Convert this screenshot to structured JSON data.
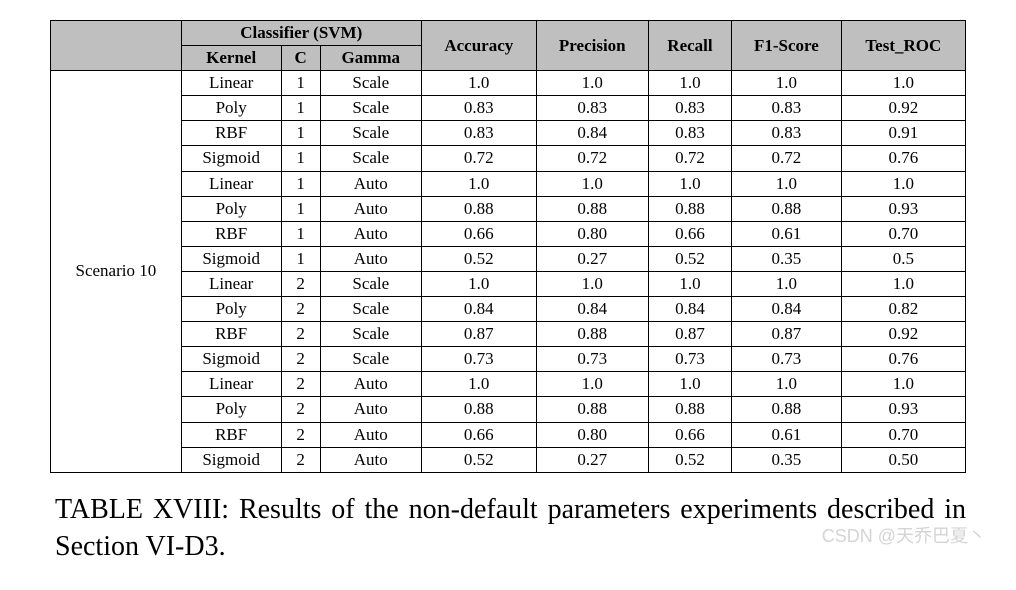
{
  "table": {
    "header_background": "#bfbfbf",
    "border_color": "#000000",
    "font_family": "Times New Roman",
    "row_label": "Scenario 10",
    "group_header": "Classifier (SVM)",
    "sub_headers": [
      "Kernel",
      "C",
      "Gamma"
    ],
    "metric_headers": [
      "Accuracy",
      "Precision",
      "Recall",
      "F1-Score",
      "Test_ROC"
    ],
    "rows": [
      {
        "kernel": "Linear",
        "c": "1",
        "gamma": "Scale",
        "accuracy": "1.0",
        "precision": "1.0",
        "recall": "1.0",
        "f1": "1.0",
        "roc": "1.0"
      },
      {
        "kernel": "Poly",
        "c": "1",
        "gamma": "Scale",
        "accuracy": "0.83",
        "precision": "0.83",
        "recall": "0.83",
        "f1": "0.83",
        "roc": "0.92"
      },
      {
        "kernel": "RBF",
        "c": "1",
        "gamma": "Scale",
        "accuracy": "0.83",
        "precision": "0.84",
        "recall": "0.83",
        "f1": "0.83",
        "roc": "0.91"
      },
      {
        "kernel": "Sigmoid",
        "c": "1",
        "gamma": "Scale",
        "accuracy": "0.72",
        "precision": "0.72",
        "recall": "0.72",
        "f1": "0.72",
        "roc": "0.76"
      },
      {
        "kernel": "Linear",
        "c": "1",
        "gamma": "Auto",
        "accuracy": "1.0",
        "precision": "1.0",
        "recall": "1.0",
        "f1": "1.0",
        "roc": "1.0"
      },
      {
        "kernel": "Poly",
        "c": "1",
        "gamma": "Auto",
        "accuracy": "0.88",
        "precision": "0.88",
        "recall": "0.88",
        "f1": "0.88",
        "roc": "0.93"
      },
      {
        "kernel": "RBF",
        "c": "1",
        "gamma": "Auto",
        "accuracy": "0.66",
        "precision": "0.80",
        "recall": "0.66",
        "f1": "0.61",
        "roc": "0.70"
      },
      {
        "kernel": "Sigmoid",
        "c": "1",
        "gamma": "Auto",
        "accuracy": "0.52",
        "precision": "0.27",
        "recall": "0.52",
        "f1": "0.35",
        "roc": "0.5"
      },
      {
        "kernel": "Linear",
        "c": "2",
        "gamma": "Scale",
        "accuracy": "1.0",
        "precision": "1.0",
        "recall": "1.0",
        "f1": "1.0",
        "roc": "1.0"
      },
      {
        "kernel": "Poly",
        "c": "2",
        "gamma": "Scale",
        "accuracy": "0.84",
        "precision": "0.84",
        "recall": "0.84",
        "f1": "0.84",
        "roc": "0.82"
      },
      {
        "kernel": "RBF",
        "c": "2",
        "gamma": "Scale",
        "accuracy": "0.87",
        "precision": "0.88",
        "recall": "0.87",
        "f1": "0.87",
        "roc": "0.92"
      },
      {
        "kernel": "Sigmoid",
        "c": "2",
        "gamma": "Scale",
        "accuracy": "0.73",
        "precision": "0.73",
        "recall": "0.73",
        "f1": "0.73",
        "roc": "0.76"
      },
      {
        "kernel": "Linear",
        "c": "2",
        "gamma": "Auto",
        "accuracy": "1.0",
        "precision": "1.0",
        "recall": "1.0",
        "f1": "1.0",
        "roc": "1.0"
      },
      {
        "kernel": "Poly",
        "c": "2",
        "gamma": "Auto",
        "accuracy": "0.88",
        "precision": "0.88",
        "recall": "0.88",
        "f1": "0.88",
        "roc": "0.93"
      },
      {
        "kernel": "RBF",
        "c": "2",
        "gamma": "Auto",
        "accuracy": "0.66",
        "precision": "0.80",
        "recall": "0.66",
        "f1": "0.61",
        "roc": "0.70"
      },
      {
        "kernel": "Sigmoid",
        "c": "2",
        "gamma": "Auto",
        "accuracy": "0.52",
        "precision": "0.27",
        "recall": "0.52",
        "f1": "0.35",
        "roc": "0.50"
      }
    ]
  },
  "caption": "TABLE XVIII: Results of the non-default parameters experiments described in Section VI-D3.",
  "watermark": "CSDN @天乔巴夏丶"
}
